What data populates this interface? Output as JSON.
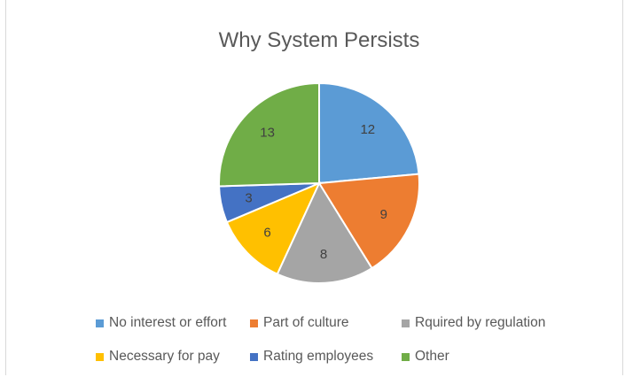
{
  "chart_data": {
    "type": "pie",
    "title": "Why System Persists",
    "categories": [
      "No interest or effort",
      "Part of culture",
      "Rquired by regulation",
      "Necessary for pay",
      "Rating employees",
      "Other"
    ],
    "values": [
      12,
      9,
      8,
      6,
      3,
      13
    ],
    "colors": [
      "#5b9bd5",
      "#ed7d31",
      "#a5a5a5",
      "#ffc000",
      "#4472c4",
      "#70ad47"
    ],
    "data_labels": true,
    "legend": "bottom"
  }
}
